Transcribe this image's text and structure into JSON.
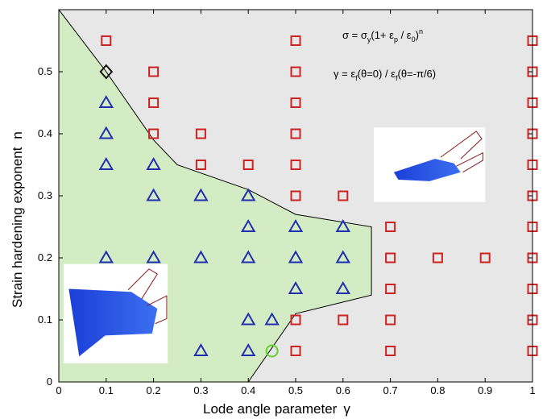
{
  "chart_data": {
    "type": "scatter",
    "title": "",
    "xlabel": "Lode angle parameter",
    "xlabel_symbol": "γ",
    "ylabel": "Strain hardening exponent",
    "ylabel_symbol": "n",
    "xlim": [
      0,
      1
    ],
    "ylim": [
      0,
      0.6
    ],
    "x_ticks": [
      "0",
      "0.1",
      "0.2",
      "0.3",
      "0.4",
      "0.5",
      "0.6",
      "0.7",
      "0.8",
      "0.9",
      "1"
    ],
    "y_ticks": [
      "0",
      "0.1",
      "0.2",
      "0.3",
      "0.4",
      "0.5"
    ],
    "x_tick_values": [
      0,
      0.1,
      0.2,
      0.3,
      0.4,
      0.5,
      0.6,
      0.7,
      0.8,
      0.9,
      1
    ],
    "y_tick_values": [
      0,
      0.1,
      0.2,
      0.3,
      0.4,
      0.5
    ],
    "grid": false,
    "annotations": {
      "eq1": {
        "base": "σ = σ",
        "sub1": "y",
        "mid": "(1+ ε",
        "sub2": "p",
        "mid2": " / ε",
        "sub3": "0",
        "tail": ")",
        "sup": "n"
      },
      "eq2": {
        "base": "γ = ε",
        "sub1": "f",
        "mid": "(θ=0) / ε",
        "sub2": "f",
        "tail": "(θ=-π/6)"
      }
    },
    "regions": {
      "green_boundary": [
        [
          0,
          0.6
        ],
        [
          0.1,
          0.5
        ],
        [
          0.2,
          0.39
        ],
        [
          0.25,
          0.35
        ],
        [
          0.4,
          0.31
        ],
        [
          0.5,
          0.27
        ],
        [
          0.66,
          0.25
        ],
        [
          0.66,
          0.14
        ],
        [
          0.5,
          0.11
        ],
        [
          0.4,
          0.0
        ],
        [
          0,
          0.0
        ]
      ],
      "green_color": "#d3ecc4",
      "grey_color": "#e7e7e7"
    },
    "series": [
      {
        "marker": "square",
        "color": "#cc2222",
        "points": [
          [
            0.1,
            0.55
          ],
          [
            0.2,
            0.5
          ],
          [
            0.2,
            0.45
          ],
          [
            0.2,
            0.4
          ],
          [
            0.3,
            0.4
          ],
          [
            0.3,
            0.35
          ],
          [
            0.4,
            0.35
          ],
          [
            0.5,
            0.55
          ],
          [
            0.5,
            0.5
          ],
          [
            0.5,
            0.45
          ],
          [
            0.5,
            0.4
          ],
          [
            0.5,
            0.35
          ],
          [
            0.5,
            0.3
          ],
          [
            0.6,
            0.3
          ],
          [
            0.7,
            0.25
          ],
          [
            0.7,
            0.2
          ],
          [
            0.8,
            0.2
          ],
          [
            0.9,
            0.2
          ],
          [
            0.7,
            0.15
          ],
          [
            0.5,
            0.1
          ],
          [
            0.6,
            0.1
          ],
          [
            0.7,
            0.1
          ],
          [
            0.5,
            0.05
          ],
          [
            0.7,
            0.05
          ],
          [
            1,
            0.55
          ],
          [
            1,
            0.5
          ],
          [
            1,
            0.45
          ],
          [
            1,
            0.4
          ],
          [
            1,
            0.35
          ],
          [
            1,
            0.3
          ],
          [
            1,
            0.25
          ],
          [
            1,
            0.2
          ],
          [
            1,
            0.15
          ],
          [
            1,
            0.1
          ],
          [
            1,
            0.05
          ]
        ]
      },
      {
        "marker": "triangle",
        "color": "#1f2fb0",
        "points": [
          [
            0.1,
            0.45
          ],
          [
            0.1,
            0.4
          ],
          [
            0.1,
            0.35
          ],
          [
            0.2,
            0.35
          ],
          [
            0.2,
            0.3
          ],
          [
            0.3,
            0.3
          ],
          [
            0.4,
            0.3
          ],
          [
            0.4,
            0.25
          ],
          [
            0.5,
            0.25
          ],
          [
            0.6,
            0.25
          ],
          [
            0.1,
            0.2
          ],
          [
            0.2,
            0.2
          ],
          [
            0.3,
            0.2
          ],
          [
            0.4,
            0.2
          ],
          [
            0.5,
            0.2
          ],
          [
            0.6,
            0.2
          ],
          [
            0.5,
            0.15
          ],
          [
            0.6,
            0.15
          ],
          [
            0.4,
            0.1
          ],
          [
            0.45,
            0.1
          ],
          [
            0.3,
            0.05
          ],
          [
            0.4,
            0.05
          ]
        ]
      },
      {
        "marker": "diamond",
        "color": "#111111",
        "points": [
          [
            0.1,
            0.5
          ]
        ]
      },
      {
        "marker": "circle",
        "color": "#5fd12a",
        "points": [
          [
            0.45,
            0.05
          ]
        ]
      }
    ],
    "insets": [
      {
        "name": "specimen-inset-top-right",
        "x0": 0.665,
        "y0": 0.41,
        "x1": 0.9,
        "y1": 0.29
      },
      {
        "name": "specimen-inset-bottom-left",
        "x0": 0.01,
        "y0": 0.19,
        "x1": 0.23,
        "y1": 0.03
      }
    ]
  }
}
